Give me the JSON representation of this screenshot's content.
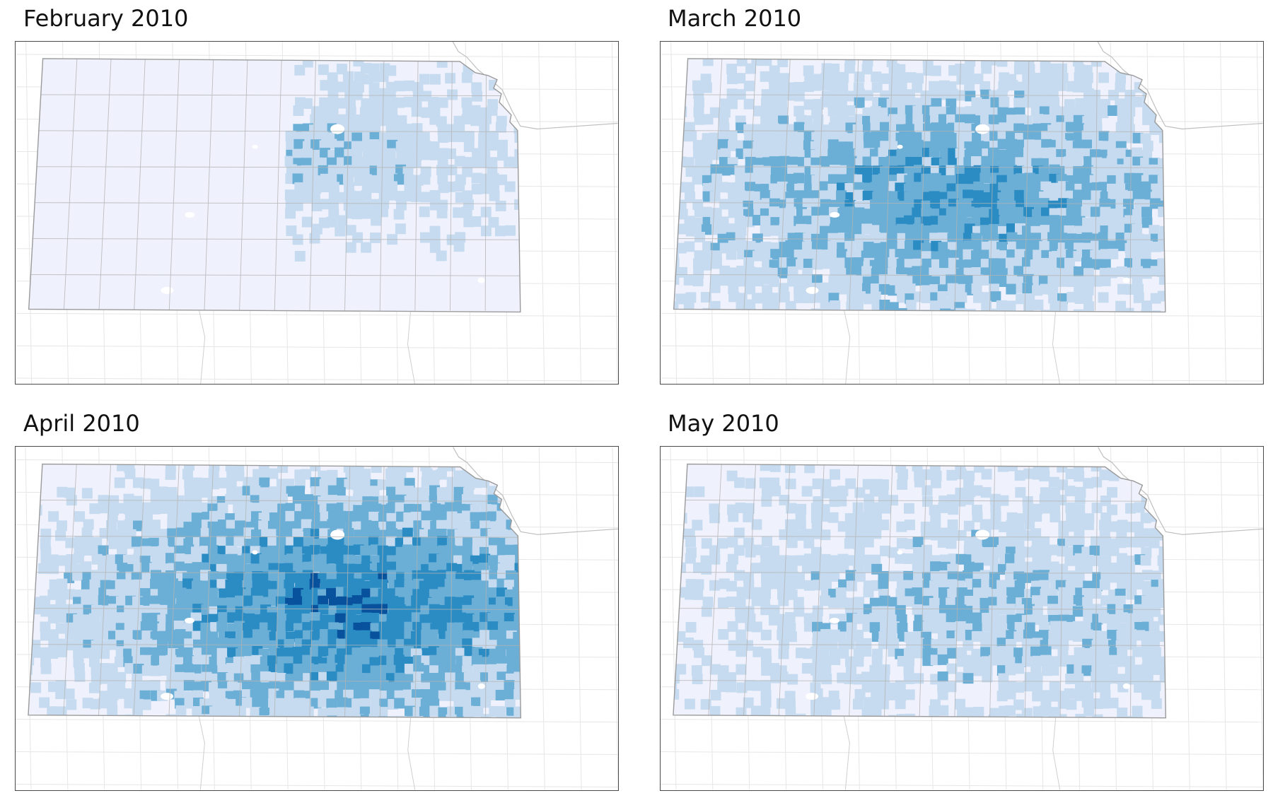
{
  "figure": {
    "panels": [
      {
        "title": "February 2010",
        "intensity": 0.45,
        "focus_x": 0.62,
        "focus_y": 0.38
      },
      {
        "title": "March 2010",
        "intensity": 2.05,
        "focus_x": 0.55,
        "focus_y": 0.55
      },
      {
        "title": "April 2010",
        "intensity": 2.75,
        "focus_x": 0.65,
        "focus_y": 0.55
      },
      {
        "title": "May 2010",
        "intensity": 1.15,
        "focus_x": 0.65,
        "focus_y": 0.55
      }
    ],
    "palette": [
      "#eff1fd",
      "#c6dbef",
      "#6baed6",
      "#2b8cc4",
      "#08519c"
    ],
    "boundary_color": "#b4b4b4",
    "lake_color": "#ffffff"
  }
}
